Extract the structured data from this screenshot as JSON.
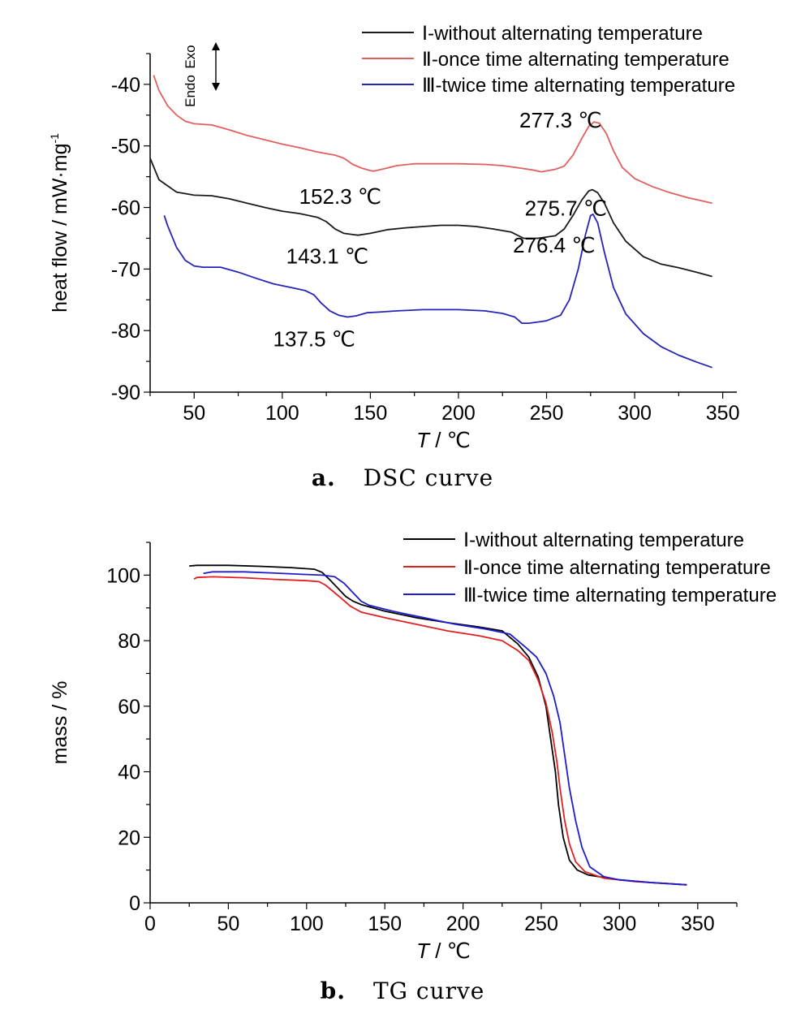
{
  "chart_data": [
    {
      "type": "line",
      "caption_letter": "a.",
      "caption_text": "DSC curve",
      "xlabel_var": "T",
      "xlabel_unit": " / ℃",
      "ylabel": "heat flow / mW·mg",
      "ylabel_sup": "-1",
      "xlim": [
        25,
        358
      ],
      "ylim": [
        -90,
        -35
      ],
      "xticks": [
        50,
        100,
        150,
        200,
        250,
        300,
        350
      ],
      "yticks": [
        -90,
        -80,
        -70,
        -60,
        -50,
        -40
      ],
      "direction": {
        "exo": "Exo",
        "endo": "Endo"
      },
      "legend_position": "top-right",
      "series": [
        {
          "name": "Ⅰ-without alternating temperature",
          "color": "#1a1a1a",
          "points": [
            [
              25,
              -52
            ],
            [
              30,
              -55.5
            ],
            [
              40,
              -57.5
            ],
            [
              50,
              -58
            ],
            [
              60,
              -58.1
            ],
            [
              70,
              -58.6
            ],
            [
              80,
              -59.3
            ],
            [
              90,
              -60
            ],
            [
              100,
              -60.6
            ],
            [
              110,
              -61
            ],
            [
              120,
              -61.6
            ],
            [
              125,
              -62.3
            ],
            [
              130,
              -63.5
            ],
            [
              135,
              -64.2
            ],
            [
              140,
              -64.4
            ],
            [
              143,
              -64.5
            ],
            [
              150,
              -64.2
            ],
            [
              160,
              -63.6
            ],
            [
              170,
              -63.3
            ],
            [
              180,
              -63.1
            ],
            [
              190,
              -62.9
            ],
            [
              200,
              -62.9
            ],
            [
              210,
              -63.1
            ],
            [
              220,
              -63.5
            ],
            [
              230,
              -64
            ],
            [
              237,
              -65
            ],
            [
              245,
              -65
            ],
            [
              255,
              -64.6
            ],
            [
              260,
              -63.5
            ],
            [
              265,
              -61.3
            ],
            [
              270,
              -58.8
            ],
            [
              274,
              -57.3
            ],
            [
              276,
              -57.1
            ],
            [
              279,
              -57.6
            ],
            [
              283,
              -59.4
            ],
            [
              288,
              -62.5
            ],
            [
              295,
              -65.5
            ],
            [
              305,
              -68
            ],
            [
              315,
              -69.2
            ],
            [
              325,
              -69.8
            ],
            [
              335,
              -70.5
            ],
            [
              344,
              -71.2
            ]
          ]
        },
        {
          "name": "Ⅱ-once time alternating temperature",
          "color": "#e06060",
          "points": [
            [
              27,
              -38.5
            ],
            [
              30,
              -41
            ],
            [
              35,
              -43.5
            ],
            [
              40,
              -45
            ],
            [
              45,
              -46
            ],
            [
              50,
              -46.4
            ],
            [
              60,
              -46.6
            ],
            [
              70,
              -47.4
            ],
            [
              80,
              -48.3
            ],
            [
              90,
              -49
            ],
            [
              100,
              -49.7
            ],
            [
              110,
              -50.3
            ],
            [
              120,
              -51
            ],
            [
              130,
              -51.5
            ],
            [
              135,
              -52
            ],
            [
              140,
              -53
            ],
            [
              145,
              -53.6
            ],
            [
              150,
              -54
            ],
            [
              152,
              -54.1
            ],
            [
              158,
              -53.7
            ],
            [
              165,
              -53.2
            ],
            [
              175,
              -52.9
            ],
            [
              185,
              -52.9
            ],
            [
              200,
              -52.9
            ],
            [
              215,
              -53
            ],
            [
              225,
              -53.2
            ],
            [
              235,
              -53.6
            ],
            [
              242,
              -53.9
            ],
            [
              247,
              -54.2
            ],
            [
              255,
              -53.8
            ],
            [
              260,
              -53.3
            ],
            [
              265,
              -51.5
            ],
            [
              270,
              -48.8
            ],
            [
              274,
              -46.8
            ],
            [
              277,
              -46.1
            ],
            [
              280,
              -46.3
            ],
            [
              284,
              -48
            ],
            [
              288,
              -50.8
            ],
            [
              293,
              -53.5
            ],
            [
              300,
              -55.3
            ],
            [
              310,
              -56.6
            ],
            [
              320,
              -57.6
            ],
            [
              330,
              -58.4
            ],
            [
              344,
              -59.3
            ]
          ]
        },
        {
          "name": "Ⅲ-twice time alternating temperature",
          "color": "#2424b8",
          "points": [
            [
              33,
              -61.3
            ],
            [
              35,
              -63
            ],
            [
              40,
              -66.5
            ],
            [
              45,
              -68.6
            ],
            [
              50,
              -69.5
            ],
            [
              55,
              -69.7
            ],
            [
              65,
              -69.7
            ],
            [
              75,
              -70.5
            ],
            [
              85,
              -71.5
            ],
            [
              95,
              -72.4
            ],
            [
              105,
              -73
            ],
            [
              113,
              -73.5
            ],
            [
              118,
              -74.2
            ],
            [
              122,
              -75.5
            ],
            [
              127,
              -76.8
            ],
            [
              132,
              -77.5
            ],
            [
              137,
              -77.8
            ],
            [
              142,
              -77.6
            ],
            [
              148,
              -77.1
            ],
            [
              155,
              -77
            ],
            [
              165,
              -76.8
            ],
            [
              180,
              -76.6
            ],
            [
              200,
              -76.6
            ],
            [
              215,
              -76.8
            ],
            [
              225,
              -77.2
            ],
            [
              232,
              -77.8
            ],
            [
              236,
              -78.8
            ],
            [
              240,
              -78.8
            ],
            [
              250,
              -78.4
            ],
            [
              258,
              -77.5
            ],
            [
              263,
              -75
            ],
            [
              268,
              -70
            ],
            [
              272,
              -64.5
            ],
            [
              275,
              -61.3
            ],
            [
              276.4,
              -61.1
            ],
            [
              279,
              -62.5
            ],
            [
              283,
              -67.5
            ],
            [
              288,
              -73
            ],
            [
              295,
              -77.3
            ],
            [
              305,
              -80.5
            ],
            [
              315,
              -82.6
            ],
            [
              325,
              -84
            ],
            [
              335,
              -85.1
            ],
            [
              344,
              -86
            ]
          ]
        }
      ],
      "annotations": [
        {
          "text": "277.3 ℃",
          "x": 277.3,
          "y": -46.1
        },
        {
          "text": "152.3 ℃",
          "x": 152.3,
          "y": -54.1
        },
        {
          "text": "275.7 ℃",
          "x": 275.7,
          "y": -57.1
        },
        {
          "text": "143.1 ℃",
          "x": 143.1,
          "y": -64.5
        },
        {
          "text": "276.4 ℃",
          "x": 276.4,
          "y": -61.1
        },
        {
          "text": "137.5 ℃",
          "x": 137.5,
          "y": -77.8
        }
      ]
    },
    {
      "type": "line",
      "caption_letter": "b.",
      "caption_text": "TG curve",
      "xlabel_var": "T",
      "xlabel_unit": " / ℃",
      "ylabel": "mass / %",
      "xlim": [
        0,
        375
      ],
      "ylim": [
        0,
        110
      ],
      "xticks": [
        0,
        50,
        100,
        150,
        200,
        250,
        300,
        350
      ],
      "yticks": [
        0,
        20,
        40,
        60,
        80,
        100
      ],
      "legend_position": "top-right",
      "series": [
        {
          "name": "Ⅰ-without alternating temperature",
          "color": "#000000",
          "points": [
            [
              25,
              102.8
            ],
            [
              30,
              103
            ],
            [
              50,
              103
            ],
            [
              70,
              102.7
            ],
            [
              90,
              102.3
            ],
            [
              105,
              101.8
            ],
            [
              110,
              100.8
            ],
            [
              115,
              98.5
            ],
            [
              120,
              96
            ],
            [
              125,
              93.5
            ],
            [
              130,
              92
            ],
            [
              135,
              91
            ],
            [
              150,
              89
            ],
            [
              170,
              87
            ],
            [
              190,
              85.5
            ],
            [
              210,
              84.2
            ],
            [
              225,
              83
            ],
            [
              235,
              79
            ],
            [
              242,
              75
            ],
            [
              248,
              69
            ],
            [
              253,
              60
            ],
            [
              256,
              50
            ],
            [
              259,
              40
            ],
            [
              261,
              30
            ],
            [
              264,
              20
            ],
            [
              268,
              13
            ],
            [
              273,
              10
            ],
            [
              280,
              8.5
            ],
            [
              300,
              7
            ],
            [
              320,
              6.2
            ],
            [
              343,
              5.5
            ]
          ]
        },
        {
          "name": "Ⅱ-once time alternating temperature",
          "color": "#e02020",
          "points": [
            [
              28,
              98.8
            ],
            [
              30,
              99.3
            ],
            [
              40,
              99.5
            ],
            [
              60,
              99.2
            ],
            [
              80,
              98.7
            ],
            [
              100,
              98.3
            ],
            [
              108,
              98
            ],
            [
              112,
              97
            ],
            [
              117,
              95
            ],
            [
              122,
              93
            ],
            [
              128,
              90.5
            ],
            [
              135,
              88.7
            ],
            [
              150,
              87
            ],
            [
              170,
              85
            ],
            [
              190,
              83
            ],
            [
              210,
              81.5
            ],
            [
              225,
              80
            ],
            [
              235,
              77
            ],
            [
              242,
              74
            ],
            [
              248,
              68
            ],
            [
              253,
              61
            ],
            [
              257,
              52
            ],
            [
              260,
              43
            ],
            [
              262,
              35
            ],
            [
              265,
              25
            ],
            [
              268,
              18
            ],
            [
              272,
              12.5
            ],
            [
              278,
              9.5
            ],
            [
              290,
              7.5
            ],
            [
              310,
              6.5
            ],
            [
              343,
              5.5
            ]
          ]
        },
        {
          "name": "Ⅲ-twice time alternating temperature",
          "color": "#1c1cd0",
          "points": [
            [
              34,
              100.5
            ],
            [
              40,
              101
            ],
            [
              60,
              101
            ],
            [
              80,
              100.6
            ],
            [
              100,
              100.2
            ],
            [
              110,
              100
            ],
            [
              118,
              99.5
            ],
            [
              124,
              97.5
            ],
            [
              130,
              94.5
            ],
            [
              135,
              92
            ],
            [
              140,
              90.8
            ],
            [
              155,
              89
            ],
            [
              175,
              87
            ],
            [
              195,
              85
            ],
            [
              215,
              83.5
            ],
            [
              230,
              82
            ],
            [
              240,
              78
            ],
            [
              247,
              75
            ],
            [
              253,
              70
            ],
            [
              258,
              63
            ],
            [
              262,
              55
            ],
            [
              265,
              45
            ],
            [
              268,
              35
            ],
            [
              272,
              25
            ],
            [
              276,
              17
            ],
            [
              281,
              11
            ],
            [
              290,
              8
            ],
            [
              300,
              7
            ],
            [
              320,
              6.2
            ],
            [
              343,
              5.5
            ]
          ]
        }
      ]
    }
  ]
}
